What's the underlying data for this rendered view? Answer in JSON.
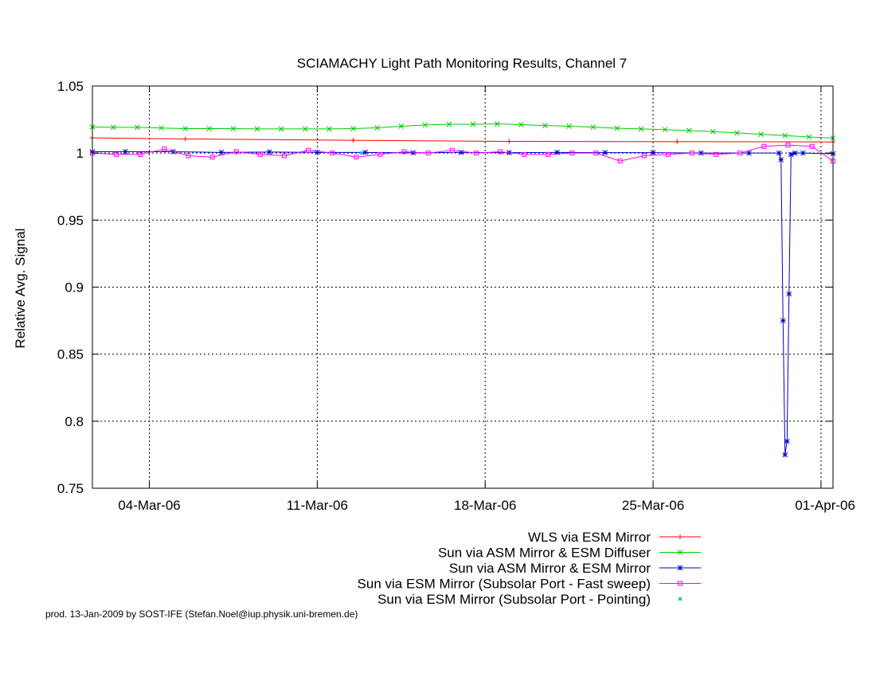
{
  "chart_data": {
    "type": "line",
    "title": "SCIAMACHY Light Path Monitoring Results, Channel 7",
    "xlabel": "",
    "ylabel": "Relative Avg. Signal",
    "xlim": [
      "2006-03-01T15:00",
      "2006-04-01T12:00"
    ],
    "ylim": [
      0.75,
      1.05
    ],
    "x_ticks": [
      {
        "date": "2006-03-04",
        "label": "04-Mar-06"
      },
      {
        "date": "2006-03-11",
        "label": "11-Mar-06"
      },
      {
        "date": "2006-03-18",
        "label": "18-Mar-06"
      },
      {
        "date": "2006-03-25",
        "label": "25-Mar-06"
      },
      {
        "date": "2006-04-01",
        "label": "01-Apr-06"
      }
    ],
    "y_ticks": [
      {
        "value": 0.75,
        "label": "0.75"
      },
      {
        "value": 0.8,
        "label": "0.8"
      },
      {
        "value": 0.85,
        "label": "0.85"
      },
      {
        "value": 0.9,
        "label": "0.9"
      },
      {
        "value": 0.95,
        "label": "0.95"
      },
      {
        "value": 1.0,
        "label": "1"
      },
      {
        "value": 1.05,
        "label": "1.05"
      }
    ],
    "grid": true,
    "legend_position": "below",
    "series": [
      {
        "name": "WLS via ESM Mirror",
        "color": "#ff0000",
        "marker": "plus",
        "x": [
          "2006-03-01T15:00",
          "2006-03-05T12:00",
          "2006-03-12T12:00",
          "2006-03-19T00:00",
          "2006-03-26T00:00",
          "2006-04-01T12:00"
        ],
        "y": [
          1.0113,
          1.0105,
          1.0095,
          1.0087,
          1.0085,
          1.0083
        ]
      },
      {
        "name": "Sun via ASM Mirror & ESM Diffuser",
        "color": "#00cc00",
        "marker": "cross",
        "x": [
          "2006-03-01T15:00",
          "2006-03-02T12:00",
          "2006-03-03T12:00",
          "2006-03-04T12:00",
          "2006-03-05T12:00",
          "2006-03-06T12:00",
          "2006-03-07T12:00",
          "2006-03-08T12:00",
          "2006-03-09T12:00",
          "2006-03-10T12:00",
          "2006-03-11T12:00",
          "2006-03-12T12:00",
          "2006-03-13T12:00",
          "2006-03-14T12:00",
          "2006-03-15T12:00",
          "2006-03-16T12:00",
          "2006-03-17T12:00",
          "2006-03-18T12:00",
          "2006-03-19T12:00",
          "2006-03-20T12:00",
          "2006-03-21T12:00",
          "2006-03-22T12:00",
          "2006-03-23T12:00",
          "2006-03-24T12:00",
          "2006-03-25T12:00",
          "2006-03-26T12:00",
          "2006-03-27T12:00",
          "2006-03-28T12:00",
          "2006-03-29T12:00",
          "2006-03-30T12:00",
          "2006-03-31T12:00",
          "2006-04-01T12:00"
        ],
        "y": [
          1.0195,
          1.0192,
          1.0192,
          1.0187,
          1.0182,
          1.0182,
          1.0182,
          1.018,
          1.018,
          1.018,
          1.018,
          1.0182,
          1.0188,
          1.02,
          1.021,
          1.0215,
          1.0215,
          1.0218,
          1.0212,
          1.0205,
          1.02,
          1.0193,
          1.0185,
          1.018,
          1.0175,
          1.0168,
          1.016,
          1.015,
          1.014,
          1.013,
          1.012,
          1.0112
        ]
      },
      {
        "name": "Sun via ASM Mirror & ESM Mirror",
        "color": "#0000cc",
        "marker": "star",
        "x": [
          "2006-03-01T15:00",
          "2006-03-03T00:00",
          "2006-03-05T00:00",
          "2006-03-07T00:00",
          "2006-03-09T00:00",
          "2006-03-11T00:00",
          "2006-03-13T00:00",
          "2006-03-15T00:00",
          "2006-03-17T00:00",
          "2006-03-19T00:00",
          "2006-03-21T00:00",
          "2006-03-23T00:00",
          "2006-03-25T00:00",
          "2006-03-27T00:00",
          "2006-03-29T00:00",
          "2006-03-30T06:00",
          "2006-03-30T08:00",
          "2006-03-30T10:00",
          "2006-03-30T12:00",
          "2006-03-30T14:00",
          "2006-03-30T16:00",
          "2006-03-30T18:00",
          "2006-03-30T22:00",
          "2006-03-31T06:00",
          "2006-04-01T12:00"
        ],
        "y": [
          1.001,
          1.001,
          1.001,
          1.0005,
          1.0008,
          1.0005,
          1.0005,
          1.0002,
          1.0005,
          1.0003,
          1.0005,
          1.0003,
          1.0003,
          1.0,
          1.0,
          1.0,
          0.995,
          0.875,
          0.775,
          0.785,
          0.895,
          0.999,
          1.0,
          1.0,
          0.9995
        ]
      },
      {
        "name": "Sun via ESM Mirror (Subsolar Port - Fast sweep)",
        "color": "#ff00ff",
        "marker": "square",
        "x": [
          "2006-03-01T15:00",
          "2006-03-02T15:00",
          "2006-03-03T15:00",
          "2006-03-04T15:00",
          "2006-03-05T15:00",
          "2006-03-06T15:00",
          "2006-03-07T15:00",
          "2006-03-08T15:00",
          "2006-03-09T15:00",
          "2006-03-10T15:00",
          "2006-03-11T15:00",
          "2006-03-12T15:00",
          "2006-03-13T15:00",
          "2006-03-14T15:00",
          "2006-03-15T15:00",
          "2006-03-16T15:00",
          "2006-03-17T15:00",
          "2006-03-18T15:00",
          "2006-03-19T15:00",
          "2006-03-20T15:00",
          "2006-03-21T15:00",
          "2006-03-22T15:00",
          "2006-03-23T15:00",
          "2006-03-24T15:00",
          "2006-03-25T15:00",
          "2006-03-26T15:00",
          "2006-03-27T15:00",
          "2006-03-28T15:00",
          "2006-03-29T15:00",
          "2006-03-30T15:00",
          "2006-03-31T15:00",
          "2006-04-01T12:00"
        ],
        "y": [
          1.0,
          0.999,
          0.999,
          1.003,
          0.998,
          0.997,
          1.001,
          0.999,
          0.998,
          1.002,
          1.0,
          0.997,
          0.999,
          1.001,
          1.0,
          1.002,
          1.0,
          1.001,
          0.999,
          0.999,
          1.0,
          1.0,
          0.994,
          0.998,
          0.999,
          1.0,
          0.999,
          1.0,
          1.005,
          1.006,
          1.005,
          0.994
        ]
      },
      {
        "name": "Sun via ESM Mirror (Subsolar Port - Pointing)",
        "color": "#00cccc",
        "marker": "dot",
        "x": [
          "2006-03-12T20:00"
        ],
        "y": [
          1.0
        ]
      }
    ]
  },
  "footer": {
    "text": "prod. 13-Jan-2009 by SOST-IFE (Stefan.Noel@iup.physik.uni-bremen.de)"
  }
}
